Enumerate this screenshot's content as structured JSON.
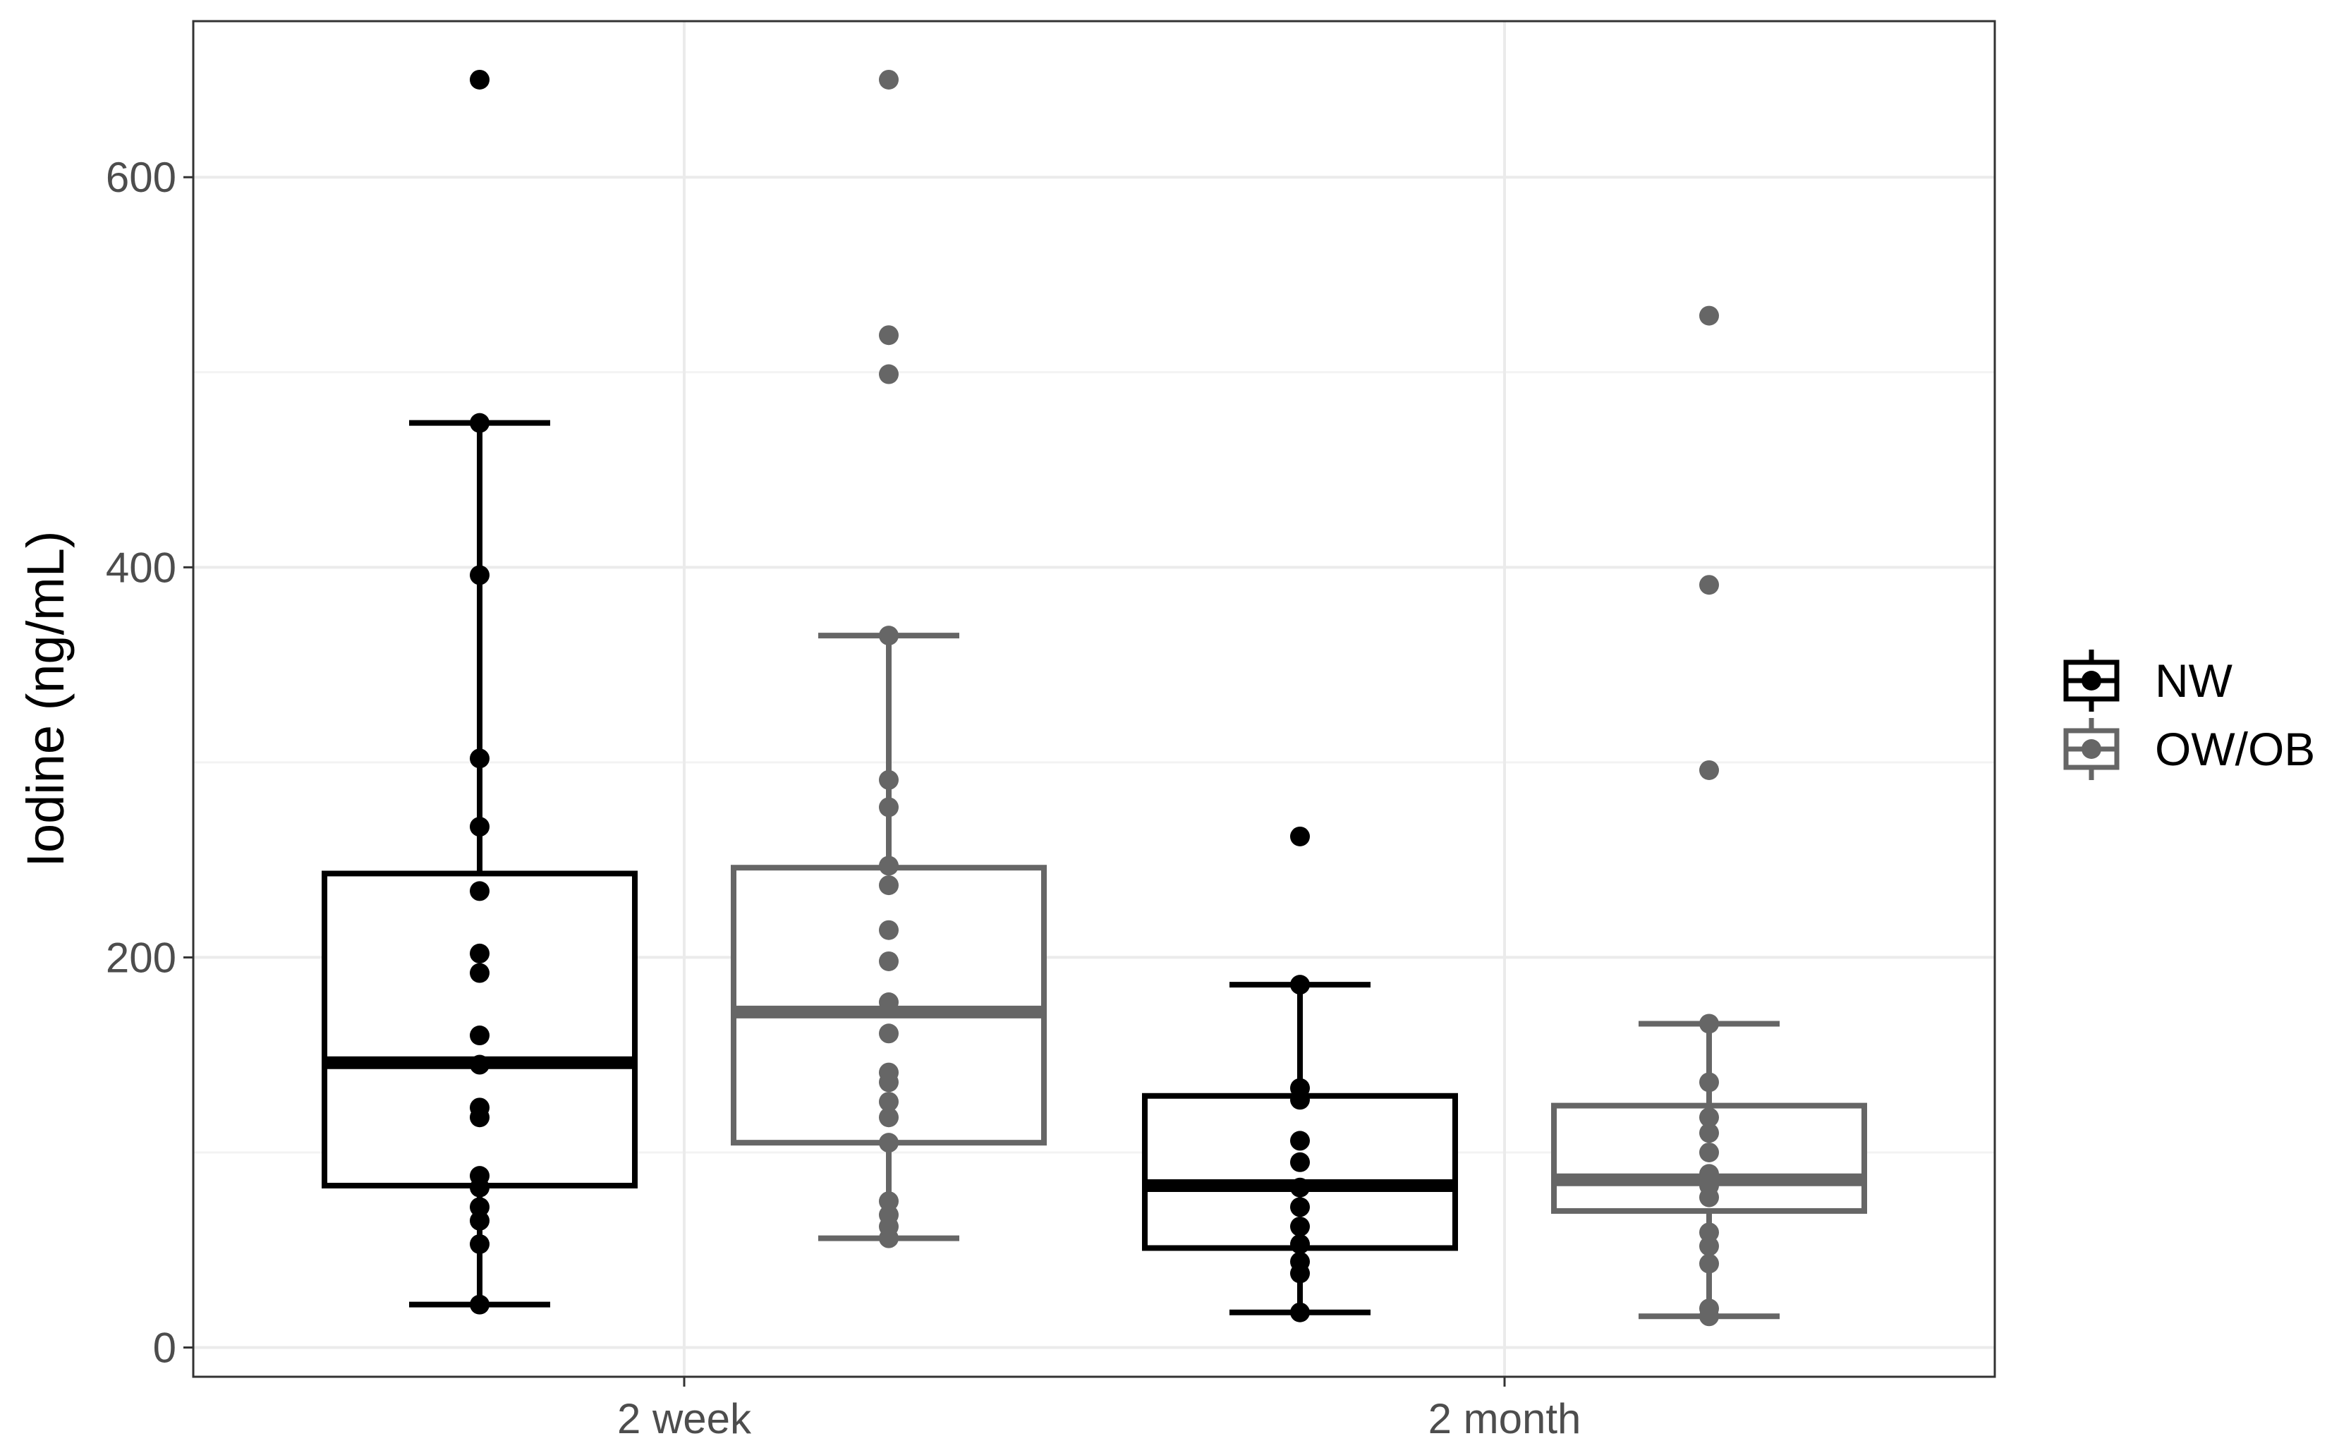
{
  "colors": {
    "background": "#ffffff",
    "grid_major": "#ebebeb",
    "grid_minor": "#f3f3f3",
    "panel_border": "#333333",
    "tick_text": "#4d4d4d"
  },
  "chart_data": {
    "type": "boxplot",
    "title": "",
    "xlabel": "",
    "ylabel": "Iodine (ng/mL)",
    "ylim": [
      -15,
      680
    ],
    "yticks": [
      0,
      200,
      400,
      600
    ],
    "grid": true,
    "categories": [
      "2 week",
      "2 month"
    ],
    "legend_position": "right",
    "series": [
      {
        "name": "NW",
        "color": "#000000",
        "boxes": [
          {
            "category": "2 week",
            "whisker_low": 22,
            "q1": 83,
            "median": 146,
            "q3": 243,
            "whisker_high": 474,
            "outliers": [
              650
            ],
            "points": [
              22,
              53,
              65,
              72,
              82,
              88,
              118,
              123,
              145,
              160,
              192,
              202,
              234,
              267,
              302,
              396,
              474
            ]
          },
          {
            "category": "2 month",
            "whisker_low": 18,
            "q1": 51,
            "median": 83,
            "q3": 129,
            "whisker_high": 186,
            "outliers": [
              262
            ],
            "points": [
              18,
              38,
              44,
              53,
              62,
              72,
              82,
              95,
              106,
              127,
              133,
              186
            ]
          }
        ]
      },
      {
        "name": "OW/OB",
        "color": "#666666",
        "boxes": [
          {
            "category": "2 week",
            "whisker_low": 56,
            "q1": 105,
            "median": 172,
            "q3": 246,
            "whisker_high": 365,
            "outliers": [
              499,
              519,
              650
            ],
            "points": [
              56,
              62,
              68,
              75,
              105,
              118,
              126,
              136,
              141,
              161,
              177,
              198,
              214,
              237,
              247,
              277,
              291,
              365
            ]
          },
          {
            "category": "2 month",
            "whisker_low": 16,
            "q1": 70,
            "median": 86,
            "q3": 124,
            "whisker_high": 166,
            "outliers": [
              296,
              391,
              529
            ],
            "points": [
              16,
              20,
              43,
              52,
              59,
              77,
              83,
              89,
              100,
              110,
              118,
              136,
              166
            ]
          }
        ]
      }
    ]
  }
}
